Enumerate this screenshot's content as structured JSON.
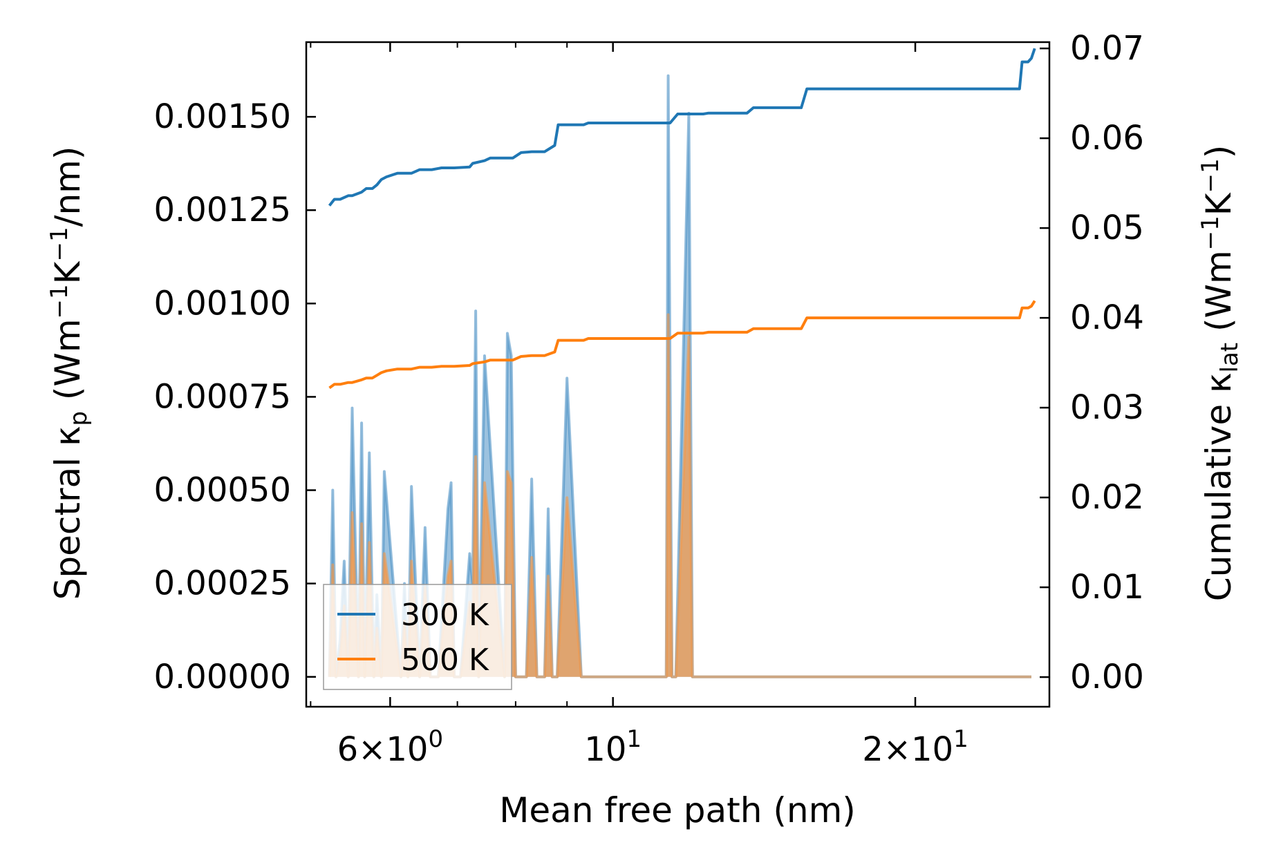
{
  "chart_data": {
    "type": "line",
    "xlabel": "Mean free path (nm)",
    "xscale": "log",
    "xlim": [
      4.95,
      27.2
    ],
    "x_ticks": [
      {
        "value": 6,
        "base": "6",
        "exp": "0",
        "mult": true
      },
      {
        "value": 10,
        "base": "10",
        "exp": "1",
        "mult": false
      },
      {
        "value": 20,
        "base": "2",
        "exp": "1",
        "mult": true
      }
    ],
    "x_minor_ticks": [
      5,
      7,
      8,
      9,
      30
    ],
    "left_axis": {
      "label_main": "Spectral κ",
      "label_sub": "p",
      "label_units": " (Wm",
      "label_sup1": "−1",
      "label_mid": "K",
      "label_sup2": "−1",
      "label_end": "/nm)",
      "ylim": [
        -8e-05,
        0.0017
      ],
      "ticks": [
        "0.00000",
        "0.00025",
        "0.00050",
        "0.00075",
        "0.00100",
        "0.00125",
        "0.00150"
      ],
      "tick_values": [
        0,
        0.00025,
        0.0005,
        0.00075,
        0.001,
        0.00125,
        0.0015
      ]
    },
    "right_axis": {
      "label_main": "Cumulative κ",
      "label_sub": "lat",
      "label_units": " (Wm",
      "label_sup1": "−1",
      "label_mid": "K",
      "label_sup2": "−1",
      "label_end": ")",
      "ylim": [
        -0.0033,
        0.0707
      ],
      "ticks": [
        "0.00",
        "0.01",
        "0.02",
        "0.03",
        "0.04",
        "0.05",
        "0.06",
        "0.07"
      ],
      "tick_values": [
        0,
        0.01,
        0.02,
        0.03,
        0.04,
        0.05,
        0.06,
        0.07
      ]
    },
    "legend": {
      "position": "lower-left",
      "entries": [
        "300 K",
        "500 K"
      ]
    },
    "series": [
      {
        "name": "300 K",
        "color": "#1f77b4",
        "spectral_color": "#4a8fc4",
        "cumulative": {
          "x": [
            5.22,
            5.28,
            5.35,
            5.45,
            5.5,
            5.62,
            5.68,
            5.76,
            5.82,
            5.88,
            5.95,
            6.1,
            6.3,
            6.42,
            6.6,
            6.75,
            6.95,
            7.2,
            7.25,
            7.45,
            7.55,
            7.95,
            8.1,
            8.3,
            8.55,
            8.75,
            8.82,
            9.0,
            9.35,
            9.45,
            11.4,
            11.6,
            12.3,
            12.45,
            13.6,
            13.8,
            15.4,
            15.6,
            25.4,
            25.55,
            25.9,
            26.1,
            26.3
          ],
          "y": [
            0.0525,
            0.0532,
            0.0532,
            0.0536,
            0.0536,
            0.054,
            0.0544,
            0.0544,
            0.0548,
            0.0554,
            0.0557,
            0.0561,
            0.0561,
            0.0565,
            0.0565,
            0.0567,
            0.0567,
            0.0568,
            0.0572,
            0.0575,
            0.0578,
            0.0578,
            0.0584,
            0.0585,
            0.0585,
            0.0592,
            0.0615,
            0.0615,
            0.0615,
            0.0617,
            0.0617,
            0.0627,
            0.0627,
            0.0628,
            0.0628,
            0.0634,
            0.0634,
            0.0655,
            0.0655,
            0.0685,
            0.0685,
            0.0689,
            0.07
          ]
        },
        "spectral": {
          "x": [
            5.22,
            5.26,
            5.3,
            5.35,
            5.4,
            5.45,
            5.5,
            5.58,
            5.62,
            5.66,
            5.72,
            5.78,
            5.82,
            5.88,
            5.92,
            6.15,
            6.2,
            6.25,
            6.3,
            6.42,
            6.5,
            6.58,
            6.7,
            6.85,
            6.9,
            6.95,
            7.05,
            7.2,
            7.25,
            7.3,
            7.35,
            7.45,
            7.8,
            7.85,
            7.92,
            8.0,
            8.2,
            8.3,
            8.4,
            8.55,
            8.62,
            8.7,
            8.8,
            9.0,
            9.3,
            9.38,
            9.45,
            11.2,
            11.3,
            11.35,
            11.45,
            11.55,
            11.9,
            12.0,
            12.1,
            13.4,
            13.5,
            13.6,
            15.1,
            15.2,
            15.35,
            25.35,
            25.45,
            25.55,
            25.7,
            25.85,
            26.0,
            26.1
          ],
          "y": [
            0.0,
            0.0005,
            0.0,
            0.0001,
            0.00031,
            0.0,
            0.00072,
            0.0,
            0.00068,
            0.0,
            0.0006,
            0.0,
            0.00022,
            0.0,
            0.00055,
            0.0,
            0.00025,
            0.0,
            0.00051,
            0.0,
            0.0004,
            0.0,
            0.0,
            0.00045,
            0.00052,
            0.0,
            0.0,
            0.00033,
            0.00025,
            0.00098,
            0.0,
            0.00086,
            0.0,
            0.00092,
            0.00086,
            0.0,
            0.0,
            0.00053,
            0.0,
            0.0,
            0.00045,
            0.0,
            0.0,
            0.0008,
            0.0,
            0.0,
            0.0,
            0.0,
            0.0,
            0.00161,
            0.0,
            0.0,
            0.00151,
            0.0,
            0.0,
            0.0,
            0.0,
            0.0,
            0.0,
            0.0,
            0.0,
            0.0,
            0.0,
            0.0,
            0.0,
            0.0,
            0.0,
            0.0
          ]
        }
      },
      {
        "name": "500 K",
        "color": "#ff7f0e",
        "spectral_color": "#f59a4a",
        "cumulative": {
          "x": [
            5.22,
            5.28,
            5.35,
            5.45,
            5.5,
            5.62,
            5.68,
            5.76,
            5.82,
            5.88,
            5.95,
            6.1,
            6.3,
            6.42,
            6.6,
            6.75,
            6.95,
            7.2,
            7.25,
            7.45,
            7.55,
            7.95,
            8.1,
            8.3,
            8.55,
            8.75,
            8.82,
            9.0,
            9.35,
            9.45,
            11.4,
            11.6,
            12.3,
            12.45,
            13.6,
            13.8,
            15.4,
            15.6,
            25.4,
            25.55,
            25.9,
            26.1,
            26.3
          ],
          "y": [
            0.0322,
            0.0326,
            0.0326,
            0.0328,
            0.0328,
            0.0331,
            0.0333,
            0.0333,
            0.0336,
            0.0339,
            0.0341,
            0.0343,
            0.0343,
            0.0345,
            0.0345,
            0.0346,
            0.0346,
            0.0347,
            0.0349,
            0.0351,
            0.0353,
            0.0353,
            0.0357,
            0.0358,
            0.0358,
            0.0362,
            0.0375,
            0.0375,
            0.0375,
            0.0377,
            0.0377,
            0.0383,
            0.0383,
            0.0384,
            0.0384,
            0.0388,
            0.0388,
            0.04,
            0.04,
            0.0411,
            0.0411,
            0.0413,
            0.0419
          ]
        },
        "spectral": {
          "x": [
            5.22,
            5.26,
            5.3,
            5.35,
            5.4,
            5.45,
            5.5,
            5.58,
            5.62,
            5.66,
            5.72,
            5.78,
            5.82,
            5.88,
            5.92,
            6.15,
            6.2,
            6.25,
            6.3,
            6.42,
            6.5,
            6.58,
            6.7,
            6.85,
            6.9,
            6.95,
            7.05,
            7.2,
            7.25,
            7.3,
            7.35,
            7.45,
            7.8,
            7.85,
            7.92,
            8.0,
            8.2,
            8.3,
            8.4,
            8.55,
            8.62,
            8.7,
            8.8,
            9.0,
            9.3,
            9.38,
            9.45,
            11.2,
            11.3,
            11.35,
            11.45,
            11.55,
            11.9,
            12.0,
            12.1,
            13.4,
            13.5,
            13.6,
            15.1,
            15.2,
            15.35,
            25.35,
            25.45,
            25.55,
            25.7,
            25.85,
            26.0,
            26.1
          ],
          "y": [
            0.0,
            0.0003,
            0.0,
            6e-05,
            0.00019,
            0.0,
            0.00044,
            0.0,
            0.00041,
            0.0,
            0.00036,
            0.0,
            0.00013,
            0.0,
            0.00033,
            0.0,
            0.00015,
            0.0,
            0.00031,
            0.0,
            0.00024,
            0.0,
            0.0,
            0.00027,
            0.00031,
            0.0,
            0.0,
            0.0002,
            0.00015,
            0.00059,
            0.0,
            0.00052,
            0.0,
            0.00055,
            0.00052,
            0.0,
            0.0,
            0.00032,
            0.0,
            0.0,
            0.00027,
            0.0,
            0.0,
            0.00048,
            0.0,
            0.0,
            0.0,
            0.0,
            0.0,
            0.00097,
            0.0,
            0.0,
            0.00091,
            0.0,
            0.0,
            0.0,
            0.0,
            0.0,
            0.0,
            0.0,
            0.0,
            0.0,
            0.0,
            0.0,
            0.0,
            0.0,
            0.0,
            0.0
          ]
        }
      }
    ]
  }
}
